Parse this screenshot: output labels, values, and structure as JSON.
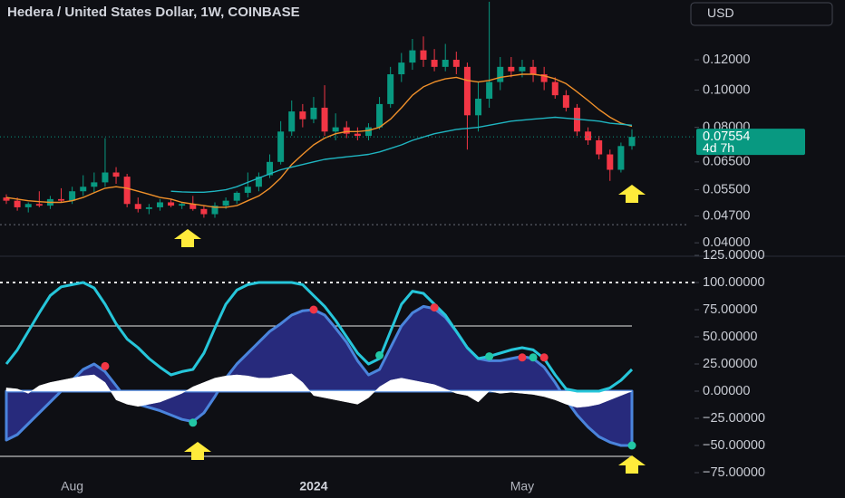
{
  "header": {
    "currency": "USD"
  },
  "chart_data": [
    {
      "type": "candlestick",
      "title": "Hedera / United States Dollar, 1W, COINBASE",
      "log_scale": true,
      "ylim": [
        0.0371,
        0.1718
      ],
      "yticks": [
        {
          "value": 0.04,
          "label": "0.04000"
        },
        {
          "value": 0.047,
          "label": "0.04700"
        },
        {
          "value": 0.055,
          "label": "0.05500"
        },
        {
          "value": 0.065,
          "label": "0.06500"
        },
        {
          "value": 0.08,
          "label": "0.08000"
        },
        {
          "value": 0.1,
          "label": "0.10000"
        },
        {
          "value": 0.12,
          "label": "0.12000"
        }
      ],
      "up_color": "#089981",
      "down_color": "#f23645",
      "open": [
        0.0525,
        0.0515,
        0.0495,
        0.0505,
        0.05,
        0.052,
        0.0515,
        0.0545,
        0.056,
        0.0575,
        0.061,
        0.0595,
        0.0505,
        0.049,
        0.0495,
        0.051,
        0.05,
        0.0505,
        0.049,
        0.0475,
        0.05,
        0.0515,
        0.054,
        0.056,
        0.06,
        0.065,
        0.078,
        0.088,
        0.084,
        0.09,
        0.078,
        0.08,
        0.077,
        0.076,
        0.08,
        0.092,
        0.11,
        0.118,
        0.127,
        0.12,
        0.115,
        0.12,
        0.115,
        0.086,
        0.095,
        0.105,
        0.115,
        0.112,
        0.115,
        0.11,
        0.105,
        0.097,
        0.09,
        0.078,
        0.074,
        0.068,
        0.062,
        0.0715
      ],
      "high": [
        0.0535,
        0.0525,
        0.051,
        0.0545,
        0.053,
        0.0555,
        0.056,
        0.06,
        0.061,
        0.075,
        0.063,
        0.0605,
        0.0525,
        0.0505,
        0.052,
        0.052,
        0.051,
        0.053,
        0.05,
        0.051,
        0.0525,
        0.0545,
        0.061,
        0.061,
        0.068,
        0.083,
        0.094,
        0.092,
        0.096,
        0.103,
        0.087,
        0.083,
        0.08,
        0.082,
        0.096,
        0.115,
        0.125,
        0.136,
        0.138,
        0.128,
        0.132,
        0.126,
        0.118,
        0.105,
        0.17,
        0.122,
        0.122,
        0.12,
        0.12,
        0.115,
        0.108,
        0.1,
        0.092,
        0.08,
        0.076,
        0.07,
        0.073,
        0.079
      ],
      "low": [
        0.0505,
        0.0485,
        0.048,
        0.0495,
        0.049,
        0.051,
        0.0505,
        0.053,
        0.054,
        0.056,
        0.057,
        0.0495,
        0.048,
        0.0475,
        0.0485,
        0.0495,
        0.049,
        0.0485,
        0.0465,
        0.0465,
        0.049,
        0.0505,
        0.0525,
        0.0545,
        0.059,
        0.064,
        0.076,
        0.08,
        0.082,
        0.076,
        0.074,
        0.075,
        0.074,
        0.074,
        0.079,
        0.09,
        0.105,
        0.113,
        0.115,
        0.112,
        0.112,
        0.11,
        0.07,
        0.078,
        0.09,
        0.1,
        0.108,
        0.108,
        0.105,
        0.1,
        0.095,
        0.088,
        0.076,
        0.072,
        0.066,
        0.058,
        0.061,
        0.07
      ],
      "close": [
        0.0515,
        0.0495,
        0.0505,
        0.05,
        0.052,
        0.0515,
        0.0545,
        0.056,
        0.0575,
        0.061,
        0.0595,
        0.0505,
        0.049,
        0.0495,
        0.051,
        0.05,
        0.0505,
        0.049,
        0.0475,
        0.05,
        0.0515,
        0.054,
        0.056,
        0.0595,
        0.065,
        0.078,
        0.088,
        0.084,
        0.09,
        0.078,
        0.08,
        0.077,
        0.076,
        0.08,
        0.092,
        0.11,
        0.118,
        0.127,
        0.12,
        0.115,
        0.12,
        0.115,
        0.086,
        0.095,
        0.105,
        0.115,
        0.112,
        0.115,
        0.11,
        0.105,
        0.097,
        0.09,
        0.078,
        0.074,
        0.068,
        0.062,
        0.0715,
        0.07554
      ],
      "series": [
        {
          "color": "#f0902a",
          "values": [
            0.0525,
            0.052,
            0.0515,
            0.0512,
            0.051,
            0.051,
            0.0515,
            0.0525,
            0.054,
            0.0555,
            0.056,
            0.0555,
            0.0545,
            0.0535,
            0.0525,
            0.052,
            0.051,
            0.0505,
            0.05,
            0.0495,
            0.0495,
            0.05,
            0.0515,
            0.053,
            0.0555,
            0.059,
            0.064,
            0.068,
            0.072,
            0.075,
            0.077,
            0.078,
            0.078,
            0.0785,
            0.08,
            0.084,
            0.09,
            0.097,
            0.102,
            0.105,
            0.107,
            0.108,
            0.106,
            0.105,
            0.106,
            0.108,
            0.109,
            0.11,
            0.11,
            0.109,
            0.107,
            0.104,
            0.099,
            0.094,
            0.089,
            0.085,
            0.082,
            0.0805
          ]
        },
        {
          "color": "#1fb5c1",
          "values": [
            null,
            null,
            null,
            null,
            null,
            null,
            null,
            null,
            null,
            null,
            null,
            null,
            null,
            null,
            null,
            0.0545,
            0.0543,
            0.0542,
            0.0542,
            0.0545,
            0.055,
            0.056,
            0.0575,
            0.059,
            0.0605,
            0.062,
            0.063,
            0.064,
            0.065,
            0.066,
            0.0665,
            0.067,
            0.0675,
            0.068,
            0.069,
            0.0705,
            0.072,
            0.074,
            0.0755,
            0.077,
            0.078,
            0.079,
            0.0795,
            0.08,
            0.081,
            0.082,
            0.083,
            0.0835,
            0.084,
            0.0845,
            0.085,
            0.0845,
            0.084,
            0.0835,
            0.083,
            0.082,
            0.0815,
            0.081
          ]
        }
      ],
      "levels": [
        0.0446
      ],
      "last_price": {
        "value": 0.07554,
        "countdown": "4d 7h",
        "color": "#089981"
      }
    },
    {
      "type": "oscillator",
      "categories": [
        null,
        null,
        null,
        null,
        null,
        null,
        "Aug",
        null,
        null,
        null,
        null,
        null,
        null,
        null,
        null,
        null,
        null,
        null,
        null,
        null,
        null,
        null,
        null,
        null,
        null,
        null,
        null,
        null,
        "2024",
        null,
        null,
        null,
        null,
        null,
        null,
        null,
        null,
        null,
        null,
        null,
        null,
        null,
        null,
        null,
        null,
        null,
        null,
        "May",
        null,
        null,
        null,
        null,
        null,
        null,
        null,
        null,
        null,
        null
      ],
      "ylim": [
        -85,
        125
      ],
      "yticks": [
        {
          "value": -75,
          "label": "−75.00000"
        },
        {
          "value": -50,
          "label": "−50.00000"
        },
        {
          "value": -25,
          "label": "−25.00000"
        },
        {
          "value": 0,
          "label": "0.00000"
        },
        {
          "value": 25,
          "label": "25.00000"
        },
        {
          "value": 50,
          "label": "50.00000"
        },
        {
          "value": 75,
          "label": "75.00000"
        },
        {
          "value": 100,
          "label": "100.00000"
        },
        {
          "value": 125,
          "label": "125.00000"
        }
      ],
      "levels": [
        {
          "value": 100,
          "dashed": true
        },
        {
          "value": 60,
          "dashed": false
        },
        {
          "value": -60,
          "dashed": false
        }
      ],
      "series": [
        {
          "style": "area",
          "color": "#4a84dc",
          "fill": "#272a7c",
          "values": [
            -45,
            -40,
            -30,
            -20,
            -10,
            0,
            10,
            20,
            25,
            18,
            5,
            -8,
            -12,
            -15,
            -18,
            -22,
            -26,
            -28,
            -20,
            -5,
            12,
            25,
            35,
            45,
            55,
            62,
            70,
            74,
            75,
            70,
            58,
            45,
            28,
            15,
            20,
            40,
            60,
            72,
            78,
            76,
            68,
            55,
            40,
            30,
            28,
            28,
            30,
            32,
            30,
            22,
            8,
            -8,
            -22,
            -33,
            -42,
            -47,
            -50,
            -50
          ]
        },
        {
          "style": "area",
          "color": "#ffffff",
          "fill": "#ffffff",
          "values": [
            3,
            2,
            -2,
            5,
            8,
            10,
            12,
            14,
            15,
            8,
            -8,
            -12,
            -14,
            -12,
            -10,
            -6,
            -2,
            4,
            8,
            12,
            14,
            15,
            14,
            12,
            12,
            14,
            16,
            8,
            -4,
            -6,
            -8,
            -10,
            -12,
            -6,
            4,
            10,
            12,
            10,
            8,
            6,
            2,
            -2,
            -4,
            -10,
            0,
            -2,
            -1,
            -2,
            -3,
            -5,
            -8,
            -12,
            -15,
            -14,
            -12,
            -8,
            -4,
            0
          ]
        },
        {
          "style": "line",
          "color": "#26c6da",
          "values": [
            25,
            38,
            55,
            72,
            88,
            96,
            98,
            100,
            95,
            80,
            62,
            48,
            40,
            30,
            22,
            15,
            18,
            20,
            35,
            58,
            80,
            93,
            98,
            100,
            100,
            100,
            100,
            98,
            88,
            78,
            65,
            50,
            35,
            25,
            30,
            55,
            80,
            92,
            90,
            80,
            70,
            55,
            40,
            30,
            32,
            35,
            38,
            40,
            38,
            30,
            15,
            2,
            0,
            0,
            0,
            3,
            10,
            20
          ]
        },
        {
          "style": "dots",
          "color": "#f23645",
          "values": [
            null,
            null,
            null,
            null,
            null,
            null,
            null,
            null,
            null,
            23,
            null,
            null,
            null,
            null,
            null,
            null,
            null,
            null,
            null,
            null,
            null,
            null,
            null,
            null,
            null,
            null,
            null,
            null,
            75,
            null,
            null,
            null,
            null,
            null,
            null,
            null,
            null,
            null,
            null,
            77,
            null,
            null,
            null,
            null,
            null,
            null,
            null,
            31,
            null,
            31,
            null,
            null,
            null,
            null,
            null,
            null,
            null,
            null
          ]
        },
        {
          "style": "dots",
          "color": "#22c7a5",
          "values": [
            null,
            null,
            null,
            null,
            null,
            null,
            null,
            null,
            null,
            null,
            null,
            null,
            null,
            null,
            null,
            null,
            null,
            -29,
            null,
            null,
            null,
            null,
            null,
            null,
            null,
            null,
            null,
            null,
            null,
            null,
            null,
            null,
            null,
            null,
            33,
            null,
            null,
            null,
            null,
            null,
            null,
            null,
            null,
            null,
            32,
            null,
            null,
            null,
            31,
            null,
            null,
            null,
            null,
            null,
            null,
            null,
            null,
            -50
          ]
        }
      ]
    }
  ]
}
